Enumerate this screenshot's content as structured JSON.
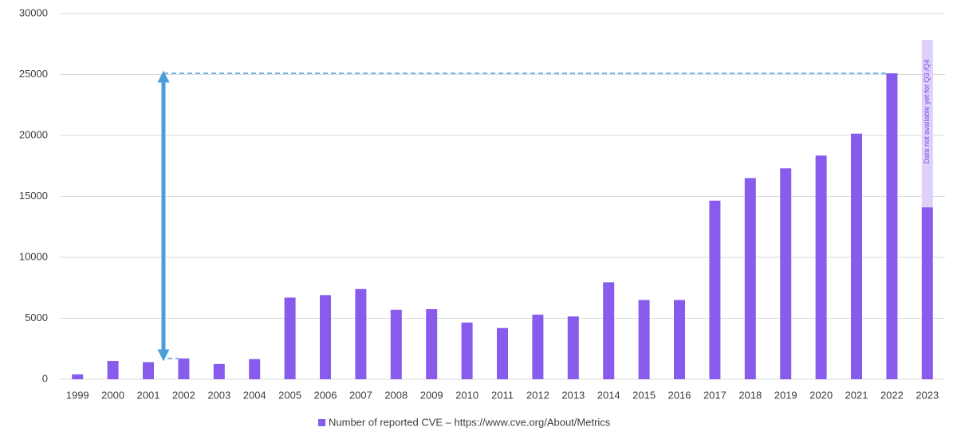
{
  "chart_data": {
    "type": "bar",
    "categories": [
      "1999",
      "2000",
      "2001",
      "2002",
      "2003",
      "2004",
      "2005",
      "2006",
      "2007",
      "2008",
      "2009",
      "2010",
      "2011",
      "2012",
      "2013",
      "2014",
      "2015",
      "2016",
      "2017",
      "2018",
      "2019",
      "2020",
      "2021",
      "2022",
      "2023"
    ],
    "series": [
      {
        "name": "Number of reported CVE – https://www.cve.org/About/Metrics",
        "color": "#875ced",
        "values": [
          400,
          1500,
          1400,
          1700,
          1250,
          1650,
          6700,
          6900,
          7400,
          5700,
          5750,
          4650,
          4200,
          5300,
          5150,
          7950,
          6500,
          6500,
          14650,
          16500,
          17300,
          18350,
          20150,
          25100,
          14100
        ]
      }
    ],
    "ylim": [
      0,
      30000
    ],
    "yticks": [
      0,
      5000,
      10000,
      15000,
      20000,
      25000,
      30000
    ],
    "grid": true,
    "annotation": "Data not available yet for Q3 /Q4",
    "legend_position": "bottom"
  }
}
